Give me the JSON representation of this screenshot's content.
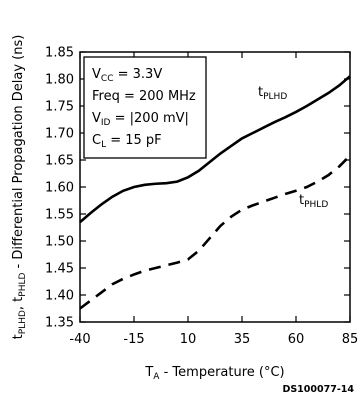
{
  "chart_data": {
    "type": "line",
    "title": "",
    "xlabel": {
      "main": "T",
      "sub": "A",
      "rest": " - Temperature (°C)"
    },
    "ylabel": {
      "p1": "t",
      "s1": "PLHD",
      "p2": ", t",
      "s2": "PHLD",
      "p3": " - Differential Propagation Delay (ns)"
    },
    "xlim": [
      -40,
      85
    ],
    "ylim": [
      1.35,
      1.85
    ],
    "x_ticks": [
      "-40",
      "-15",
      "10",
      "35",
      "60",
      "85"
    ],
    "x_tick_values": [
      -40,
      -15,
      10,
      35,
      60,
      85
    ],
    "y_ticks": [
      "1.85",
      "1.80",
      "1.75",
      "1.70",
      "1.65",
      "1.60",
      "1.55",
      "1.50",
      "1.45",
      "1.40",
      "1.35"
    ],
    "y_tick_values": [
      1.85,
      1.8,
      1.75,
      1.7,
      1.65,
      1.6,
      1.55,
      1.5,
      1.45,
      1.4,
      1.35
    ],
    "grid": false,
    "series": [
      {
        "label": {
          "main": "t",
          "sub": "PLHD"
        },
        "style": "solid",
        "x": [
          -40,
          -35,
          -30,
          -25,
          -20,
          -15,
          -10,
          -5,
          0,
          5,
          10,
          15,
          20,
          25,
          30,
          35,
          40,
          45,
          50,
          55,
          60,
          65,
          70,
          75,
          80,
          85
        ],
        "y": [
          1.535,
          1.552,
          1.568,
          1.582,
          1.593,
          1.6,
          1.604,
          1.606,
          1.607,
          1.61,
          1.618,
          1.63,
          1.646,
          1.662,
          1.676,
          1.69,
          1.7,
          1.71,
          1.72,
          1.729,
          1.739,
          1.75,
          1.762,
          1.774,
          1.788,
          1.805
        ]
      },
      {
        "label": {
          "main": "t",
          "sub": "PHLD"
        },
        "style": "dashed",
        "x": [
          -40,
          -35,
          -30,
          -25,
          -20,
          -15,
          -10,
          -5,
          0,
          5,
          10,
          15,
          20,
          25,
          30,
          35,
          40,
          45,
          50,
          55,
          60,
          65,
          70,
          75,
          80,
          85
        ],
        "y": [
          1.375,
          1.39,
          1.405,
          1.42,
          1.43,
          1.438,
          1.445,
          1.45,
          1.455,
          1.46,
          1.466,
          1.482,
          1.505,
          1.528,
          1.545,
          1.558,
          1.566,
          1.573,
          1.58,
          1.587,
          1.593,
          1.6,
          1.61,
          1.622,
          1.638,
          1.658
        ]
      }
    ],
    "conditions": [
      {
        "id": "vcc",
        "main": "V",
        "sub": "CC",
        "rest": " = 3.3V"
      },
      {
        "id": "freq",
        "main": "Freq = 200 MHz",
        "sub": "",
        "rest": ""
      },
      {
        "id": "vid",
        "main": "V",
        "sub": "ID",
        "rest": " = |200 mV|"
      },
      {
        "id": "cl",
        "main": "C",
        "sub": "L",
        "rest": " = 15 pF"
      }
    ],
    "reference": "DS100077-14"
  }
}
